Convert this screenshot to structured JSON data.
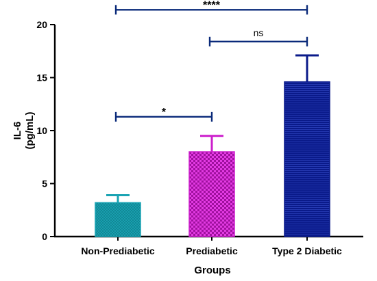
{
  "chart_data": {
    "type": "bar",
    "xlabel": "Groups",
    "ylabel_lines": [
      "IL-6",
      "(pg/mL)"
    ],
    "ylim": [
      0,
      20
    ],
    "yticks": [
      0,
      5,
      10,
      15,
      20
    ],
    "categories": [
      "Non-Prediabetic",
      "Prediabetic",
      "Type 2 Diabetic"
    ],
    "values": [
      3.2,
      8.0,
      14.6
    ],
    "error_upper": [
      3.9,
      9.5,
      17.1
    ],
    "fill_colors": [
      "#1aa3b3",
      "#cc1fcc",
      "#0a1a8a"
    ],
    "pattern": [
      "crosshatch",
      "checkered",
      "horizontal-lines"
    ],
    "significance": [
      {
        "from": 0,
        "to": 1,
        "label": "*",
        "y": 11.3,
        "color": "#0a2a7a"
      },
      {
        "from": 1,
        "to": 2,
        "label": "ns",
        "y": 18.4,
        "color": "#0a2a7a"
      },
      {
        "from": 0,
        "to": 2,
        "label": "****",
        "y": 21.4,
        "color": "#0a2a7a"
      }
    ],
    "grid": false
  }
}
